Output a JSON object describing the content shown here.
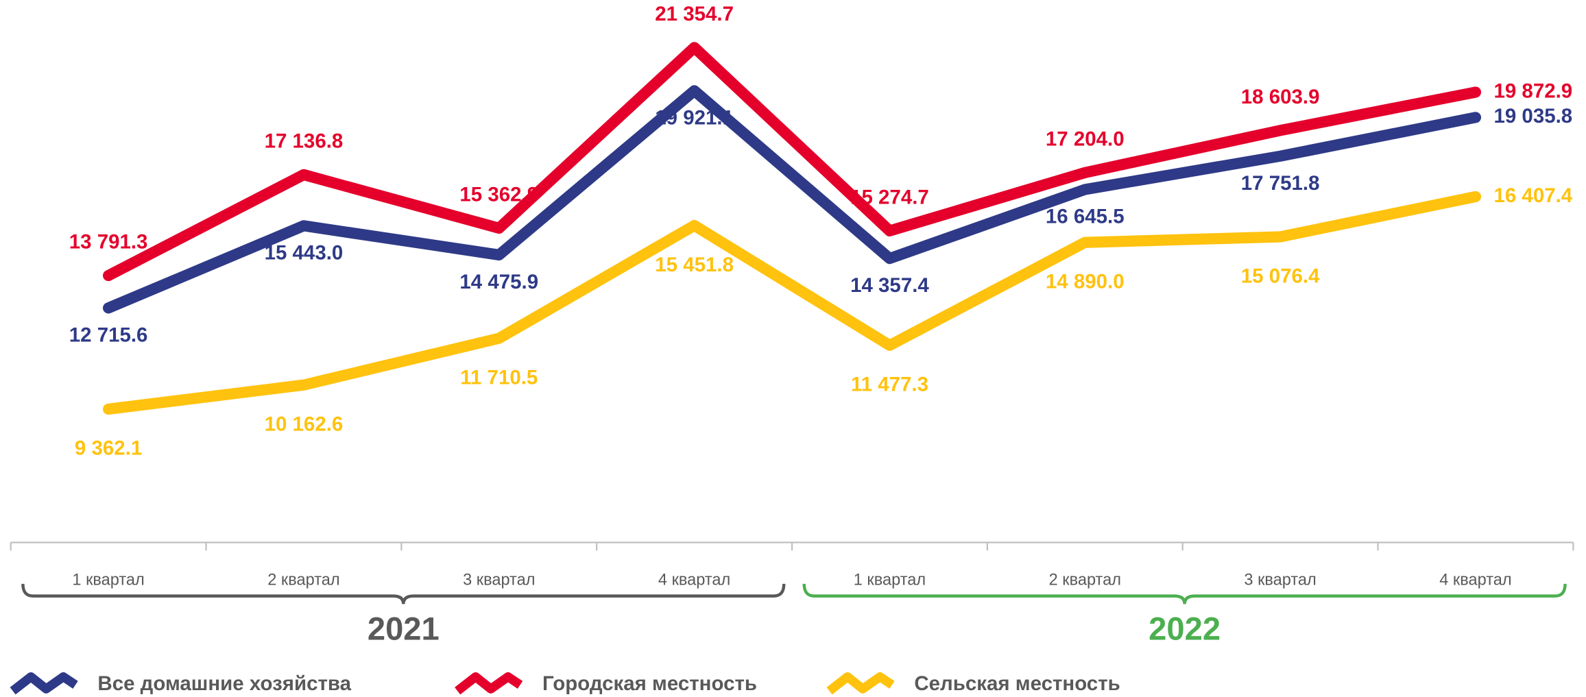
{
  "chart_data": {
    "type": "line",
    "groups": [
      {
        "name": "2021",
        "color": "#595959",
        "categories": [
          "1 квартал",
          "2 квартал",
          "3 квартал",
          "4 квартал"
        ]
      },
      {
        "name": "2022",
        "color": "#4caf50",
        "categories": [
          "1 квартал",
          "2 квартал",
          "3 квартал",
          "4 квартал"
        ]
      }
    ],
    "ylim": [
      4940,
      22930
    ],
    "series": [
      {
        "name": "Все домашние хозяйства",
        "color": "#2e3a87",
        "values": [
          12715.6,
          15443.0,
          14475.9,
          19921.1,
          14357.4,
          16645.5,
          17751.8,
          19035.8
        ],
        "value_labels": [
          "12 715.6",
          "15 443.0",
          "14 475.9",
          "19 921.1",
          "14 357.4",
          "16 645.5",
          "17 751.8",
          "19 035.8"
        ]
      },
      {
        "name": "Городская местность",
        "color": "#e4002b",
        "values": [
          13791.3,
          17136.8,
          15362.9,
          21354.7,
          15274.7,
          17204.0,
          18603.9,
          19872.9
        ],
        "value_labels": [
          "13 791.3",
          "17 136.8",
          "15 362.9",
          "21 354.7",
          "15 274.7",
          "17 204.0",
          "18 603.9",
          "19 872.9"
        ]
      },
      {
        "name": "Сельская местность",
        "color": "#ffc20e",
        "values": [
          9362.1,
          10162.6,
          11710.5,
          15451.8,
          11477.3,
          14890.0,
          15076.4,
          16407.4
        ],
        "value_labels": [
          "9 362.1",
          "10 162.6",
          "11 710.5",
          "15 451.8",
          "11 477.3",
          "14 890.0",
          "15 076.4",
          "16 407.4"
        ]
      }
    ]
  }
}
